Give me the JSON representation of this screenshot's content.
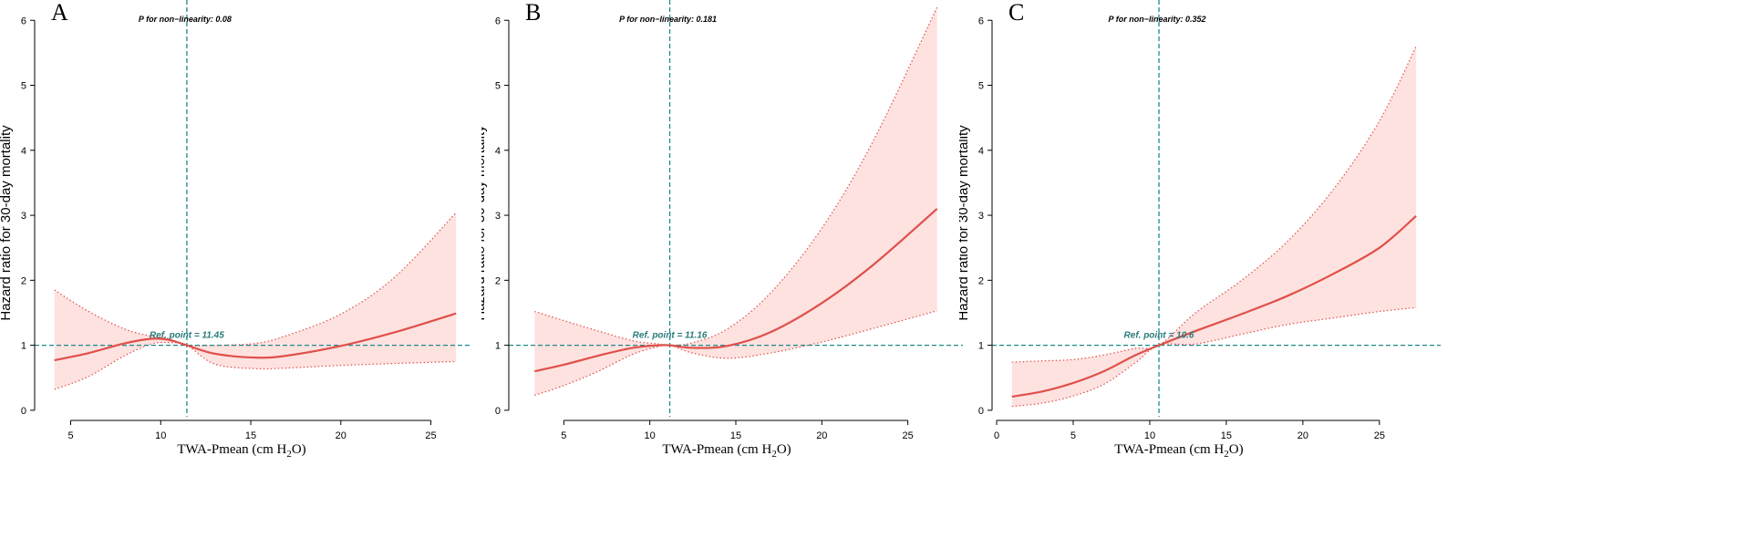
{
  "chart_data": [
    {
      "type": "line",
      "panel_label": "A",
      "title": "",
      "xlabel_main": "TWA-Pmean (cm H",
      "xlabel_sub": "2",
      "xlabel_end": "O)",
      "ylabel": "Hazard ratio for 30-day mortality",
      "xlim": [
        3.0,
        27.2
      ],
      "ylim": [
        -0.1,
        6.2
      ],
      "xticks": [
        5,
        10,
        15,
        20,
        25
      ],
      "yticks": [
        0,
        1,
        2,
        3,
        4,
        5,
        6
      ],
      "p_nonlinearity": "P for non−linearity: 0.08",
      "ref_point_label": "Ref. point = 11.45",
      "ref_x": 11.45,
      "ref_y": 1,
      "series": [
        {
          "name": "Hazard ratio",
          "x": [
            4.1,
            6,
            8,
            9.5,
            10.5,
            11.45,
            13,
            15.3,
            17,
            20,
            23,
            26.4
          ],
          "values": [
            0.77,
            0.88,
            1.03,
            1.1,
            1.08,
            1.0,
            0.87,
            0.81,
            0.84,
            0.99,
            1.2,
            1.49
          ]
        },
        {
          "name": "Upper 95% CI",
          "x": [
            4.1,
            6,
            8,
            9.5,
            10.5,
            11.45,
            13,
            15.3,
            17,
            20,
            23,
            26.4
          ],
          "values": [
            1.85,
            1.52,
            1.25,
            1.14,
            1.1,
            1.0,
            1.0,
            1.03,
            1.15,
            1.48,
            2.05,
            3.04
          ]
        },
        {
          "name": "Lower 95% CI",
          "x": [
            4.1,
            6,
            8,
            9.5,
            10.5,
            11.45,
            13,
            15.3,
            17,
            20,
            23,
            26.4
          ],
          "values": [
            0.32,
            0.52,
            0.84,
            1.02,
            1.04,
            1.0,
            0.71,
            0.64,
            0.65,
            0.69,
            0.72,
            0.75
          ]
        }
      ]
    },
    {
      "type": "line",
      "panel_label": "B",
      "title": "",
      "xlabel_main": "TWA-Pmean  (cm H",
      "xlabel_sub": "2",
      "xlabel_end": "O)",
      "ylabel": "Hazard ratio for 30-day mortality",
      "xlim": [
        1.8,
        28.2
      ],
      "ylim": [
        -0.1,
        6.2
      ],
      "xticks": [
        5,
        10,
        15,
        20,
        25
      ],
      "yticks": [
        0,
        1,
        2,
        3,
        4,
        5,
        6
      ],
      "p_nonlinearity": "P for non−linearity: 0.181",
      "ref_point_label": "Ref. point = 11.16",
      "ref_x": 11.16,
      "ref_y": 1,
      "series": [
        {
          "name": "Hazard ratio",
          "x": [
            3.3,
            5,
            7,
            9,
            10.5,
            11.16,
            12.5,
            14.5,
            17,
            20,
            23,
            26.7
          ],
          "values": [
            0.6,
            0.7,
            0.84,
            0.96,
            1.0,
            1.0,
            0.96,
            0.99,
            1.2,
            1.65,
            2.24,
            3.1
          ]
        },
        {
          "name": "Upper 95% CI",
          "x": [
            3.3,
            5,
            7,
            9,
            10.5,
            11.16,
            12.5,
            14.5,
            17,
            20,
            23,
            26.7
          ],
          "values": [
            1.52,
            1.38,
            1.22,
            1.07,
            1.02,
            1.0,
            1.04,
            1.25,
            1.8,
            2.8,
            4.15,
            6.2
          ]
        },
        {
          "name": "Lower 95% CI",
          "x": [
            3.3,
            5,
            7,
            9,
            10.5,
            11.16,
            12.5,
            14.5,
            17,
            20,
            23,
            26.7
          ],
          "values": [
            0.23,
            0.38,
            0.6,
            0.86,
            0.98,
            1.0,
            0.88,
            0.8,
            0.88,
            1.05,
            1.26,
            1.53
          ]
        }
      ]
    },
    {
      "type": "line",
      "panel_label": "C",
      "title": "",
      "xlabel_main": "TWA-Pmean  (cm H",
      "xlabel_sub": "2",
      "xlabel_end": "O)",
      "ylabel": "Hazard ratio for 30-day mortality",
      "xlim": [
        -0.3,
        29.0
      ],
      "ylim": [
        -0.1,
        6.2
      ],
      "xticks": [
        0,
        5,
        10,
        15,
        20,
        25
      ],
      "yticks": [
        0,
        1,
        2,
        3,
        4,
        5,
        6
      ],
      "p_nonlinearity": "P for non−linearity: 0.352",
      "ref_point_label": "Ref. point = 10.6",
      "ref_x": 10.6,
      "ref_y": 1,
      "series": [
        {
          "name": "Hazard ratio",
          "x": [
            1.0,
            3,
            5,
            7,
            9,
            10.6,
            13,
            16,
            19,
            22,
            25,
            27.4
          ],
          "values": [
            0.21,
            0.29,
            0.42,
            0.6,
            0.84,
            1.0,
            1.22,
            1.48,
            1.76,
            2.1,
            2.5,
            2.99
          ]
        },
        {
          "name": "Upper 95% CI",
          "x": [
            1.0,
            3,
            5,
            7,
            9,
            10.6,
            13,
            16,
            19,
            22,
            25,
            27.4
          ],
          "values": [
            0.74,
            0.76,
            0.78,
            0.85,
            0.95,
            1.0,
            1.5,
            2.0,
            2.6,
            3.4,
            4.45,
            5.6
          ]
        },
        {
          "name": "Lower 95% CI",
          "x": [
            1.0,
            3,
            5,
            7,
            9,
            10.6,
            13,
            16,
            19,
            22,
            25,
            27.4
          ],
          "values": [
            0.06,
            0.11,
            0.22,
            0.4,
            0.72,
            1.0,
            1.02,
            1.17,
            1.32,
            1.42,
            1.52,
            1.58
          ]
        }
      ]
    }
  ],
  "colors": {
    "line": "#e0504a",
    "ci_fill": "#fde2e0",
    "ci_border": "#e0504a",
    "ref_line": "#1e8a8a",
    "axis": "#000000"
  }
}
